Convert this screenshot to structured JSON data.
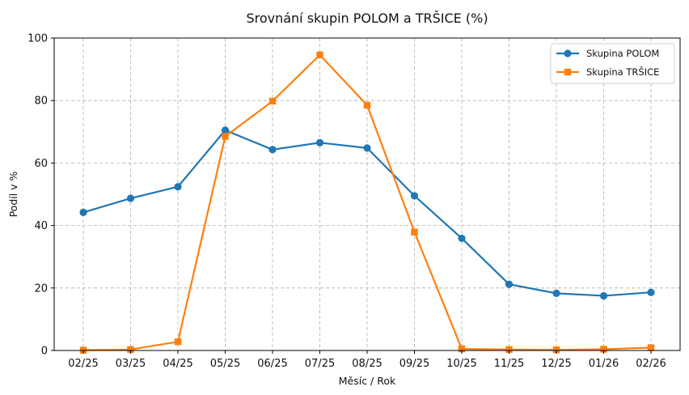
{
  "chart_data": {
    "type": "line",
    "title": "Srovnání skupin POLOM a TRŠICE (%)",
    "xlabel": "Měsíc / Rok",
    "ylabel": "Podíl v %",
    "categories": [
      "02/25",
      "03/25",
      "04/25",
      "05/25",
      "06/25",
      "07/25",
      "08/25",
      "09/25",
      "10/25",
      "11/25",
      "12/25",
      "01/26",
      "02/26"
    ],
    "ylim": [
      0,
      100
    ],
    "yticks": [
      0,
      20,
      40,
      60,
      80,
      100
    ],
    "grid": true,
    "legend_position": "top-right",
    "series": [
      {
        "name": "Skupina POLOM",
        "color": "#1f77b4",
        "marker": "circle",
        "values": [
          44.2,
          48.7,
          52.4,
          70.5,
          64.3,
          66.5,
          64.8,
          49.5,
          35.9,
          21.2,
          18.3,
          17.5,
          18.6
        ]
      },
      {
        "name": "Skupina TRŠICE",
        "color": "#ff7f0e",
        "marker": "square",
        "values": [
          0.1,
          0.3,
          2.8,
          68.5,
          79.8,
          94.6,
          78.5,
          37.9,
          0.5,
          0.3,
          0.2,
          0.4,
          0.9
        ]
      }
    ]
  }
}
